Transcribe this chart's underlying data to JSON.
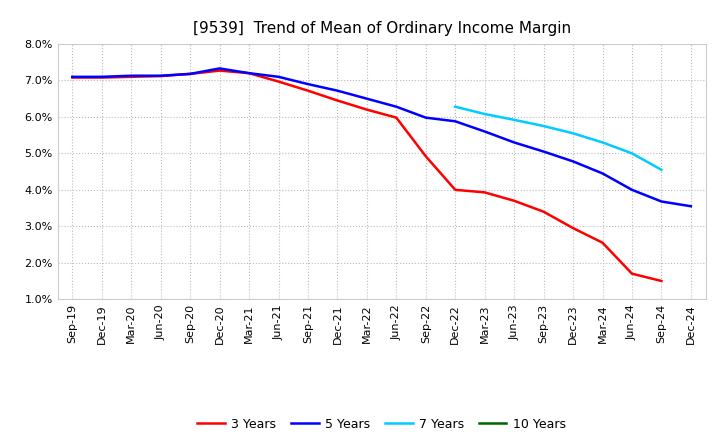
{
  "title": "[9539]  Trend of Mean of Ordinary Income Margin",
  "x_labels": [
    "Sep-19",
    "Dec-19",
    "Mar-20",
    "Jun-20",
    "Sep-20",
    "Dec-20",
    "Mar-21",
    "Jun-21",
    "Sep-21",
    "Dec-21",
    "Mar-22",
    "Jun-22",
    "Sep-22",
    "Dec-22",
    "Mar-23",
    "Jun-23",
    "Sep-23",
    "Dec-23",
    "Mar-24",
    "Jun-24",
    "Sep-24",
    "Dec-24"
  ],
  "ylim": [
    0.01,
    0.08
  ],
  "yticks": [
    0.01,
    0.02,
    0.03,
    0.04,
    0.05,
    0.06,
    0.07,
    0.08
  ],
  "ytick_labels": [
    "1.0%",
    "2.0%",
    "3.0%",
    "4.0%",
    "5.0%",
    "6.0%",
    "7.0%",
    "8.0%"
  ],
  "series_3y": {
    "label": "3 Years",
    "color": "#FF0000",
    "data_x": [
      "Sep-19",
      "Dec-19",
      "Mar-20",
      "Jun-20",
      "Sep-20",
      "Dec-20",
      "Mar-21",
      "Jun-21",
      "Sep-21",
      "Dec-21",
      "Mar-22",
      "Jun-22",
      "Sep-22",
      "Dec-22",
      "Mar-23",
      "Jun-23",
      "Sep-23",
      "Dec-23",
      "Mar-24",
      "Jun-24",
      "Sep-24"
    ],
    "data_y": [
      0.0708,
      0.0708,
      0.071,
      0.0712,
      0.0718,
      0.0727,
      0.072,
      0.0697,
      0.0672,
      0.0645,
      0.062,
      0.0598,
      0.0492,
      0.04,
      0.0393,
      0.037,
      0.034,
      0.0295,
      0.0255,
      0.017,
      0.015
    ]
  },
  "series_5y": {
    "label": "5 Years",
    "color": "#0000FF",
    "data_x": [
      "Sep-19",
      "Dec-19",
      "Mar-20",
      "Jun-20",
      "Sep-20",
      "Dec-20",
      "Mar-21",
      "Jun-21",
      "Sep-21",
      "Dec-21",
      "Mar-22",
      "Jun-22",
      "Sep-22",
      "Dec-22",
      "Mar-23",
      "Jun-23",
      "Sep-23",
      "Dec-23",
      "Mar-24",
      "Jun-24",
      "Sep-24",
      "Dec-24"
    ],
    "data_y": [
      0.071,
      0.071,
      0.0713,
      0.0713,
      0.0718,
      0.0733,
      0.072,
      0.071,
      0.069,
      0.0672,
      0.065,
      0.0628,
      0.0598,
      0.0588,
      0.056,
      0.053,
      0.0505,
      0.0478,
      0.0445,
      0.04,
      0.0368,
      0.0355
    ]
  },
  "series_7y": {
    "label": "7 Years",
    "color": "#00CCFF",
    "data_x": [
      "Dec-22",
      "Mar-23",
      "Jun-23",
      "Sep-23",
      "Dec-23",
      "Mar-24",
      "Jun-24",
      "Sep-24"
    ],
    "data_y": [
      0.0628,
      0.0608,
      0.0592,
      0.0575,
      0.0555,
      0.053,
      0.05,
      0.0455
    ]
  },
  "series_10y": {
    "label": "10 Years",
    "color": "#006400",
    "data_x": [],
    "data_y": []
  },
  "background_color": "#ffffff",
  "grid_color": "#bbbbbb",
  "plot_bg_color": "#ffffff",
  "title_fontsize": 11,
  "tick_fontsize": 8,
  "legend_fontsize": 9
}
